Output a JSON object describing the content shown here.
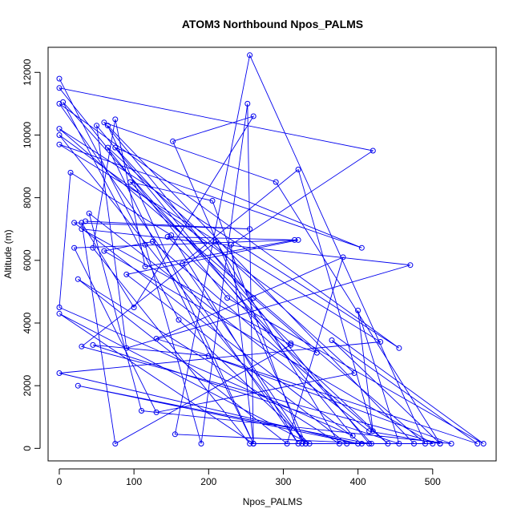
{
  "chart_data": {
    "type": "line",
    "title": "ATOM3 Northbound Npos_PALMS",
    "xlabel": "Npos_PALMS",
    "ylabel": "Altitude (m)",
    "xlim": [
      -15,
      585
    ],
    "ylim": [
      -400,
      12800
    ],
    "x_ticks": [
      0,
      100,
      200,
      300,
      400,
      500
    ],
    "y_ticks": [
      0,
      2000,
      4000,
      6000,
      8000,
      10000,
      12000
    ],
    "grid": false,
    "line_color": "#0000ee",
    "point_style": "open-circle",
    "series": [
      {
        "x": [
          0,
          115,
          190,
          252,
          260,
          230,
          420,
          0,
          225,
          568,
          0,
          330,
          152,
          260,
          100,
          30,
          75,
          310,
          30,
          470,
          90,
          50,
          393,
          0,
          15,
          150,
          320,
          0,
          455,
          0,
          490,
          255,
          155,
          418,
          5,
          160,
          335,
          0,
          260,
          475,
          65,
          260,
          65,
          395,
          130,
          20,
          315,
          115,
          75,
          45,
          255,
          330,
          165,
          320,
          420,
          400,
          455,
          45,
          200,
          525,
          110,
          40,
          415,
          510,
          30,
          210,
          375,
          25,
          305,
          380,
          130,
          560,
          365,
          510,
          290,
          60,
          415,
          25,
          400,
          0,
          430,
          0,
          405,
          75,
          260,
          345,
          310,
          95,
          205,
          325,
          500,
          60,
          125,
          440,
          145,
          320,
          90,
          385,
          405,
          20,
          255,
          35
        ],
        "y": [
          11800,
          6500,
          150,
          11000,
          150,
          6500,
          9500,
          11500,
          4800,
          150,
          10000,
          150,
          9800,
          10600,
          4500,
          7200,
          150,
          3300,
          7000,
          5850,
          3200,
          10300,
          400,
          4500,
          8800,
          6800,
          150,
          11000,
          3200,
          10200,
          150,
          12550,
          450,
          150,
          11050,
          4100,
          150,
          4300,
          150,
          150,
          10300,
          150,
          9600,
          2400,
          1150,
          6400,
          6650,
          5800,
          10500,
          6400,
          150,
          150,
          5900,
          8900,
          550,
          4400,
          150,
          3300,
          2950,
          150,
          1200,
          7500,
          550,
          150,
          3250,
          6600,
          150,
          5400,
          150,
          6100,
          3500,
          150,
          3450,
          150,
          8500,
          10400,
          150,
          2000,
          150,
          2400,
          3400,
          9700,
          6400,
          9600,
          4800,
          3050,
          3350,
          8500,
          7900,
          150,
          150,
          6300,
          6600,
          150,
          6750,
          6650,
          5550,
          150,
          150,
          7200,
          7000,
          7250
        ]
      }
    ]
  }
}
